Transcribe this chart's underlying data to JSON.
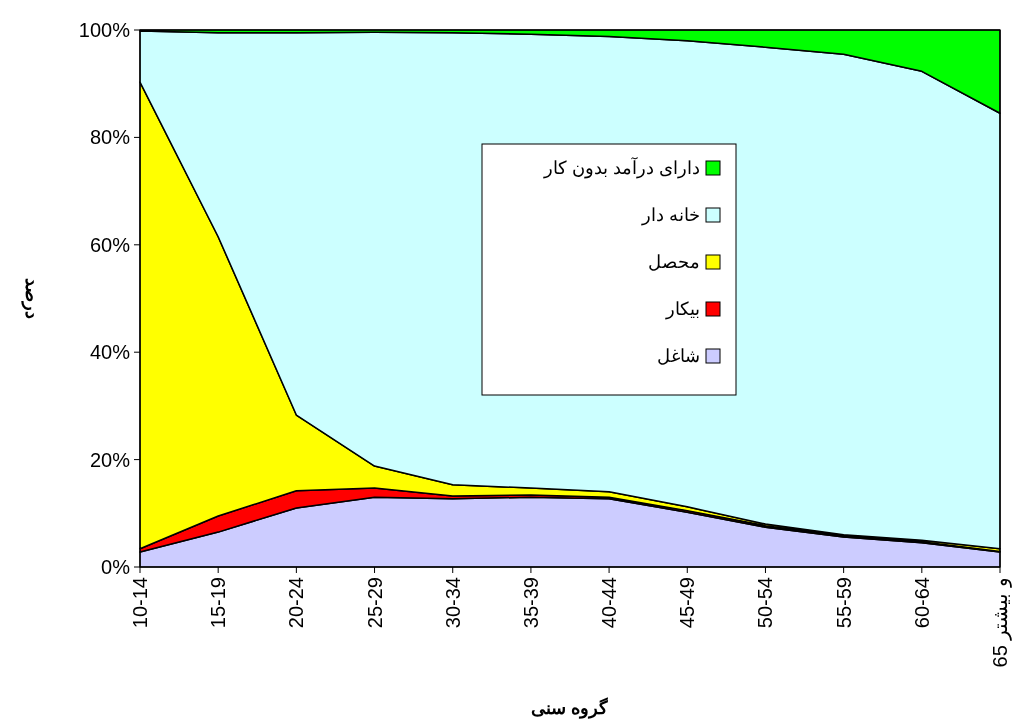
{
  "chart_data": {
    "type": "area",
    "stacked": true,
    "xlabel": "گروه سنی",
    "ylabel": "درصد",
    "categories": [
      "10-14",
      "15-19",
      "20-24",
      "25-29",
      "30-34",
      "35-39",
      "40-44",
      "45-49",
      "50-54",
      "55-59",
      "60-64",
      "65 و بیشتر"
    ],
    "series": [
      {
        "name": "شاغل",
        "color": "#ccccff",
        "values": [
          2.8,
          6.5,
          11,
          13,
          12.7,
          13,
          12.7,
          10.2,
          7.4,
          5.6,
          4.5,
          2.8
        ]
      },
      {
        "name": "بیکار",
        "color": "#ff0000",
        "values": [
          0.6,
          3,
          3.2,
          1.7,
          0.5,
          0.4,
          0.3,
          0.3,
          0.3,
          0.2,
          0.2,
          0.1
        ]
      },
      {
        "name": "محصل",
        "color": "#ffff00",
        "values": [
          86.9,
          52,
          14.1,
          4.1,
          2.1,
          1.3,
          1,
          0.7,
          0.3,
          0.2,
          0.3,
          0.5
        ]
      },
      {
        "name": "خانه دار",
        "color": "#ccffff",
        "values": [
          9.5,
          38,
          71.2,
          80.8,
          84.2,
          84.5,
          84.8,
          86.8,
          88.8,
          89.5,
          87.3,
          81.1
        ]
      },
      {
        "name": "دارای درآمد بدون کار",
        "color": "#00ff00",
        "values": [
          0.2,
          0.5,
          0.5,
          0.4,
          0.5,
          0.8,
          1.2,
          2,
          3.2,
          4.5,
          7.7,
          15.5
        ]
      }
    ],
    "ylim": [
      0,
      100
    ],
    "yticks": [
      {
        "value": 0,
        "label": "0%"
      },
      {
        "value": 20,
        "label": "20%"
      },
      {
        "value": 40,
        "label": "40%"
      },
      {
        "value": 60,
        "label": "60%"
      },
      {
        "value": 80,
        "label": "80%"
      },
      {
        "value": 100,
        "label": "100%"
      }
    ],
    "legend": "center"
  }
}
